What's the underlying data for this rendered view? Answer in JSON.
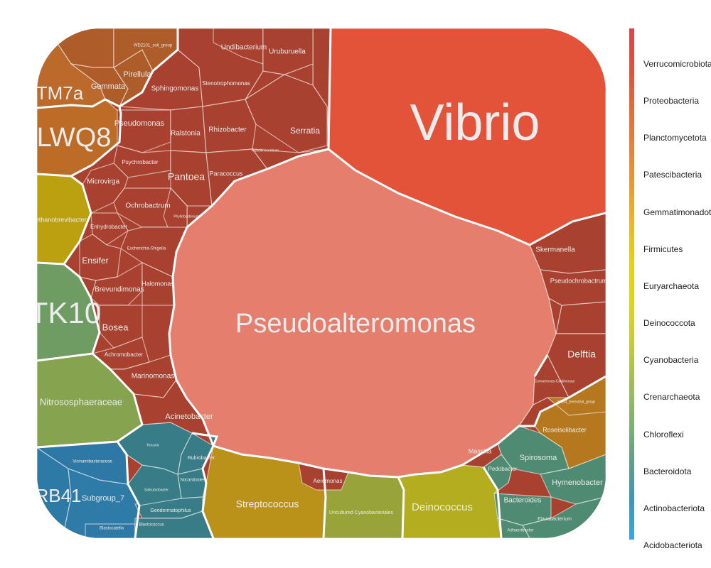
{
  "chart_data": {
    "type": "voronoi-treemap",
    "title": "",
    "legend": {
      "placement": "right",
      "entries": [
        {
          "name": "Verrucomicrobiota",
          "color": "#e0424c"
        },
        {
          "name": "Proteobacteria",
          "color": "#e2513a"
        },
        {
          "name": "Planctomycetota",
          "color": "#e4683a"
        },
        {
          "name": "Patescibacteria",
          "color": "#e7813a"
        },
        {
          "name": "Gemmatimonadota",
          "color": "#e99a33"
        },
        {
          "name": "Firmicutes",
          "color": "#ebb528"
        },
        {
          "name": "Euryarchaeota",
          "color": "#e8cf18"
        },
        {
          "name": "Deinococcota",
          "color": "#ddd51c"
        },
        {
          "name": "Cyanobacteria",
          "color": "#c3c938"
        },
        {
          "name": "Crenarchaeota",
          "color": "#a2bd57"
        },
        {
          "name": "Chloroflexi",
          "color": "#83b172"
        },
        {
          "name": "Bacteroidota",
          "color": "#5f9f87"
        },
        {
          "name": "Actinobacteriota",
          "color": "#3f95b9"
        },
        {
          "name": "Acidobacteriota",
          "color": "#38a7de"
        }
      ]
    },
    "cells": [
      {
        "label": "Vibrio",
        "phylum": "Proteobacteria",
        "color": "#e3533a"
      },
      {
        "label": "Pseudoalteromonas",
        "phylum": "Proteobacteria",
        "color": "#e57e6c"
      },
      {
        "label": "TM7a",
        "phylum": "Patescibacteria",
        "color": "#bb6a2b"
      },
      {
        "label": "LWQ8",
        "phylum": "Patescibacteria",
        "color": "#bd6c28"
      },
      {
        "label": "Methanobrevibacter",
        "phylum": "Euryarchaeota",
        "color": "#bba10f"
      },
      {
        "label": "TK10",
        "phylum": "Chloroflexi",
        "color": "#6e9c63"
      },
      {
        "label": "Nitrososphaeraceae",
        "phylum": "Crenarchaeota",
        "color": "#86a34f"
      },
      {
        "label": "RB41",
        "phylum": "Acidobacteriota",
        "color": "#2e7aa6"
      },
      {
        "label": "Subgroup_7",
        "phylum": "Acidobacteriota",
        "color": "#2f7ba7"
      },
      {
        "label": "Vicinamibacteraceae",
        "phylum": "Acidobacteriota",
        "color": "#2d78a4"
      },
      {
        "label": "Blastocatella",
        "phylum": "Acidobacteriota",
        "color": "#2e79a5"
      },
      {
        "label": "Streptococcus",
        "phylum": "Firmicutes",
        "color": "#bb9219"
      },
      {
        "label": "Uncultured Cyanobacteriales",
        "phylum": "Cyanobacteria",
        "color": "#98a43a"
      },
      {
        "label": "Deinococcus",
        "phylum": "Deinococcota",
        "color": "#b3ad1f"
      },
      {
        "label": "Spirosoma",
        "phylum": "Bacteroidota",
        "color": "#4f8a72"
      },
      {
        "label": "Hymenobacter",
        "phylum": "Bacteroidota",
        "color": "#4f8a72"
      },
      {
        "label": "Bacteroides",
        "phylum": "Bacteroidota",
        "color": "#4f8a72"
      },
      {
        "label": "Pedobacter",
        "phylum": "Bacteroidota",
        "color": "#4f8a72"
      },
      {
        "label": "Flavobacterium",
        "phylum": "Bacteroidota",
        "color": "#4f8a72"
      },
      {
        "label": "Adhaeribacter",
        "phylum": "Bacteroidota",
        "color": "#4f8a72"
      },
      {
        "label": "Roseisolibacter",
        "phylum": "Gemmatimonadota",
        "color": "#b5781f"
      },
      {
        "label": "S0134_terrestrial_group",
        "phylum": "Gemmatimonadota",
        "color": "#b5781f"
      },
      {
        "label": "Gemmata",
        "phylum": "Planctomycetota",
        "color": "#ad5c2a"
      },
      {
        "label": "Pirellula",
        "phylum": "Planctomycetota",
        "color": "#ad5c2a"
      },
      {
        "label": "WD2101_soil_group",
        "phylum": "Planctomycetota",
        "color": "#ad5c2a"
      },
      {
        "label": "Rubrobacter",
        "phylum": "Actinobacteriota",
        "color": "#377c86"
      },
      {
        "label": "Nocardioides",
        "phylum": "Actinobacteriota",
        "color": "#377c86"
      },
      {
        "label": "Geodermatophilus",
        "phylum": "Actinobacteriota",
        "color": "#377c86"
      },
      {
        "label": "Blastococcus",
        "phylum": "Actinobacteriota",
        "color": "#377c86"
      },
      {
        "label": "Solirubrobacter",
        "phylum": "Actinobacteriota",
        "color": "#377c86"
      },
      {
        "label": "Kocuria",
        "phylum": "Actinobacteriota",
        "color": "#377c86"
      },
      {
        "label": "Sphingomonas",
        "phylum": "Proteobacteria",
        "color": "#a8412f"
      },
      {
        "label": "Stenotrophomonas",
        "phylum": "Proteobacteria",
        "color": "#a8412f"
      },
      {
        "label": "Undibacterium",
        "phylum": "Proteobacteria",
        "color": "#a8412f"
      },
      {
        "label": "Uruburuella",
        "phylum": "Proteobacteria",
        "color": "#a8412f"
      },
      {
        "label": "Pseudomonas",
        "phylum": "Proteobacteria",
        "color": "#a8412f"
      },
      {
        "label": "Ralstonia",
        "phylum": "Proteobacteria",
        "color": "#a8412f"
      },
      {
        "label": "Rhizobacter",
        "phylum": "Proteobacteria",
        "color": "#a8412f"
      },
      {
        "label": "Serratia",
        "phylum": "Proteobacteria",
        "color": "#a8412f"
      },
      {
        "label": "Psychrobacter",
        "phylum": "Proteobacteria",
        "color": "#a8412f"
      },
      {
        "label": "Pantoea",
        "phylum": "Proteobacteria",
        "color": "#a8412f"
      },
      {
        "label": "Paracoccus",
        "phylum": "Proteobacteria",
        "color": "#a8412f"
      },
      {
        "label": "Rubellimicrobium",
        "phylum": "Proteobacteria",
        "color": "#a8412f"
      },
      {
        "label": "Microvirga",
        "phylum": "Proteobacteria",
        "color": "#a8412f"
      },
      {
        "label": "Ochrobactrum",
        "phylum": "Proteobacteria",
        "color": "#a8412f"
      },
      {
        "label": "Enhydrobacter",
        "phylum": "Proteobacteria",
        "color": "#a8412f"
      },
      {
        "label": "Phyllobacterium",
        "phylum": "Proteobacteria",
        "color": "#a8412f"
      },
      {
        "label": "Escherichia-Shigella",
        "phylum": "Proteobacteria",
        "color": "#a8412f"
      },
      {
        "label": "Ensifer",
        "phylum": "Proteobacteria",
        "color": "#a8412f"
      },
      {
        "label": "Brevundimonas",
        "phylum": "Proteobacteria",
        "color": "#a8412f"
      },
      {
        "label": "Halomonas",
        "phylum": "Proteobacteria",
        "color": "#a8412f"
      },
      {
        "label": "Bosea",
        "phylum": "Proteobacteria",
        "color": "#a8412f"
      },
      {
        "label": "Achromobacter",
        "phylum": "Proteobacteria",
        "color": "#a8412f"
      },
      {
        "label": "Marinomonas",
        "phylum": "Proteobacteria",
        "color": "#a8412f"
      },
      {
        "label": "Acinetobacter",
        "phylum": "Proteobacteria",
        "color": "#a8412f"
      },
      {
        "label": "Aeromonas",
        "phylum": "Proteobacteria",
        "color": "#a8412f"
      },
      {
        "label": "Massilia",
        "phylum": "Proteobacteria",
        "color": "#a8412f"
      },
      {
        "label": "Skermanella",
        "phylum": "Proteobacteria",
        "color": "#a8412f"
      },
      {
        "label": "Pseudochrobactrum",
        "phylum": "Proteobacteria",
        "color": "#a8412f"
      },
      {
        "label": "Delftia",
        "phylum": "Proteobacteria",
        "color": "#a8412f"
      },
      {
        "label": "Comamonas-Caldimonas",
        "phylum": "Proteobacteria",
        "color": "#a8412f"
      }
    ]
  }
}
